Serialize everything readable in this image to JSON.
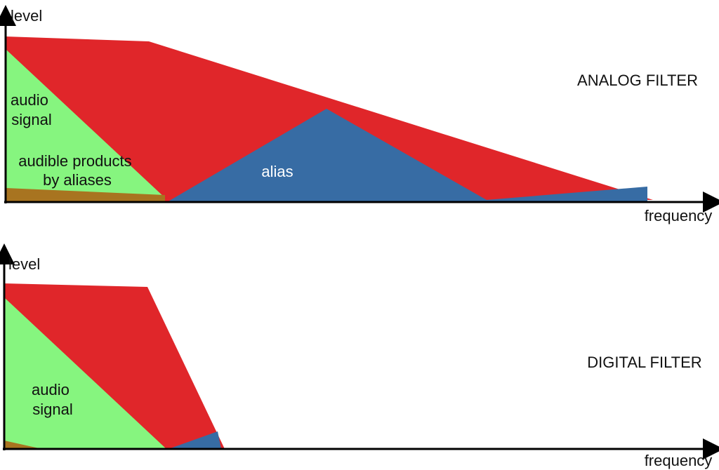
{
  "panels": [
    {
      "y_axis_label": "level",
      "x_axis_label": "frequency",
      "title": "ANALOG FILTER",
      "audio_label": [
        "audio",
        "signal"
      ],
      "products_label": [
        "audible products",
        "by aliases"
      ],
      "alias_label": "alias"
    },
    {
      "y_axis_label": "level",
      "x_axis_label": "frequency",
      "title": "DIGITAL FILTER",
      "audio_label": [
        "audio",
        "signal"
      ]
    }
  ]
}
